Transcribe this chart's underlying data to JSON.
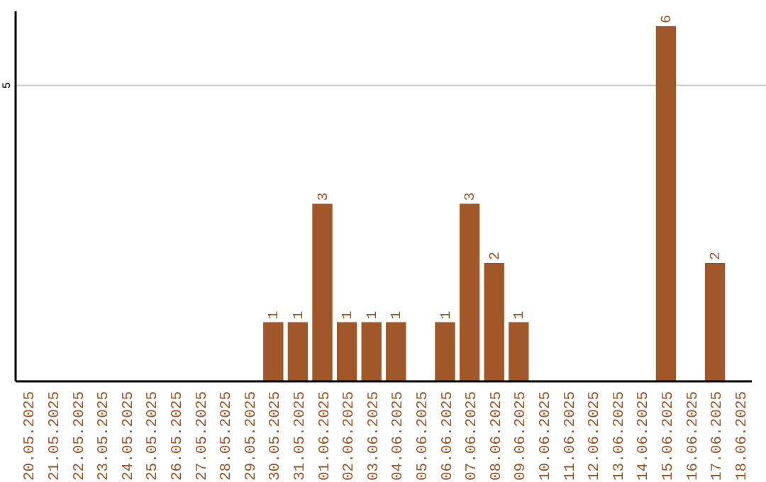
{
  "chart_data": {
    "type": "bar",
    "categories": [
      "20.05.2025",
      "21.05.2025",
      "22.05.2025",
      "23.05.2025",
      "24.05.2025",
      "25.05.2025",
      "26.05.2025",
      "27.05.2025",
      "28.05.2025",
      "29.05.2025",
      "30.05.2025",
      "31.05.2025",
      "01.06.2025",
      "02.06.2025",
      "03.06.2025",
      "04.06.2025",
      "05.06.2025",
      "06.06.2025",
      "07.06.2025",
      "08.06.2025",
      "09.06.2025",
      "10.06.2025",
      "11.06.2025",
      "12.06.2025",
      "13.06.2025",
      "14.06.2025",
      "15.06.2025",
      "16.06.2025",
      "17.06.2025",
      "18.06.2025"
    ],
    "values": [
      null,
      null,
      null,
      null,
      null,
      null,
      null,
      null,
      null,
      null,
      1,
      1,
      3,
      1,
      1,
      1,
      null,
      1,
      3,
      2,
      1,
      null,
      null,
      null,
      null,
      null,
      6,
      null,
      2,
      null
    ],
    "color": "#a0572a",
    "ylim": [
      0,
      6.25
    ],
    "yticks": [
      5
    ],
    "grid": "y",
    "data_labels": true
  }
}
